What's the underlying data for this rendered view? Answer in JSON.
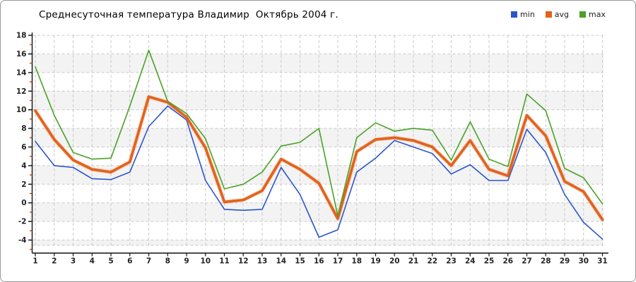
{
  "title": "Среднесуточная температура Владимир  Октябрь 2004 г.",
  "legend": {
    "items": [
      {
        "label": "min",
        "color": "#2b55cd"
      },
      {
        "label": "avg",
        "color": "#e2621b"
      },
      {
        "label": "max",
        "color": "#4aa226"
      }
    ],
    "position": "top-right"
  },
  "colors": {
    "grid": "#c9c9c9",
    "band": "#f3f3f3",
    "axis": "#111111",
    "minor_tick": "#cc2200",
    "tick_label": "#222222"
  },
  "chart_data": {
    "type": "line",
    "title": "Среднесуточная температура Владимир  Октябрь 2004 г.",
    "xlabel": "",
    "ylabel": "",
    "x": [
      1,
      2,
      3,
      4,
      5,
      6,
      7,
      8,
      9,
      10,
      11,
      12,
      13,
      14,
      15,
      16,
      17,
      18,
      19,
      20,
      21,
      22,
      23,
      24,
      25,
      26,
      27,
      28,
      29,
      30,
      31
    ],
    "ylim": [
      -4,
      18
    ],
    "ytick_step": 2,
    "minor_tick_step": 1,
    "grid": "dashed",
    "legend_position": "top-right",
    "series": [
      {
        "name": "min",
        "color": "#2b55cd",
        "width": 1.6,
        "values": [
          6.6,
          4.0,
          3.8,
          2.6,
          2.5,
          3.3,
          8.2,
          10.4,
          8.9,
          2.4,
          -0.7,
          -0.8,
          -0.7,
          3.8,
          0.9,
          -3.7,
          -2.9,
          3.3,
          4.8,
          6.7,
          6.0,
          5.3,
          3.1,
          4.1,
          2.4,
          2.4,
          7.9,
          5.4,
          0.9,
          -2.1,
          -3.9
        ]
      },
      {
        "name": "avg",
        "color": "#e2621b",
        "width": 3.6,
        "values": [
          9.9,
          6.8,
          4.6,
          3.6,
          3.3,
          4.4,
          11.4,
          10.8,
          9.2,
          5.9,
          0.1,
          0.3,
          1.3,
          4.7,
          3.6,
          2.1,
          -1.7,
          5.5,
          6.8,
          7.0,
          6.7,
          6.0,
          4.0,
          6.7,
          3.6,
          2.9,
          9.4,
          7.2,
          2.3,
          1.2,
          -1.8
        ]
      },
      {
        "name": "max",
        "color": "#4aa226",
        "width": 1.6,
        "values": [
          14.6,
          9.4,
          5.4,
          4.7,
          4.8,
          10.4,
          16.4,
          10.9,
          9.6,
          6.9,
          1.5,
          2.0,
          3.3,
          6.1,
          6.5,
          8.0,
          -1.4,
          7.0,
          8.6,
          7.7,
          8.0,
          7.8,
          4.6,
          8.7,
          4.7,
          3.9,
          11.7,
          9.9,
          3.7,
          2.7,
          -0.1
        ]
      }
    ]
  }
}
